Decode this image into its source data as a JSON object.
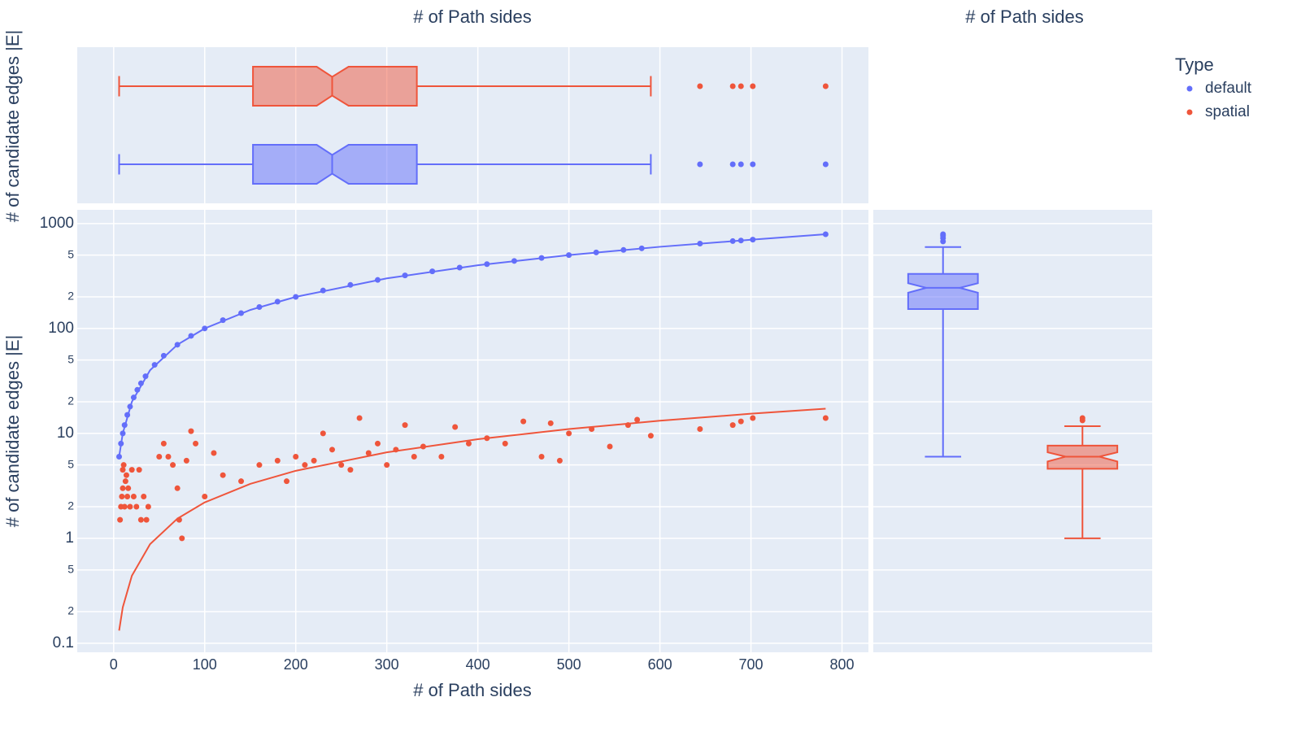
{
  "chart_data": [
    {
      "type": "scatter",
      "x_label": "# of Path sides",
      "y_label": "# of candidate edges |E|",
      "legend_title": "Type",
      "xlim": [
        -40,
        829
      ],
      "ylim": [
        0.082,
        1350
      ],
      "log_y": true,
      "grid": true,
      "xticks": [
        0,
        100,
        200,
        300,
        400,
        500,
        600,
        700,
        800
      ],
      "yticks": [
        0.1,
        {
          "value": 0.2,
          "label": "2"
        },
        {
          "value": 0.5,
          "label": "5"
        },
        1,
        2,
        5,
        10,
        {
          "value": 20,
          "label": "2"
        },
        {
          "value": 50,
          "label": "5"
        },
        100,
        {
          "value": 200,
          "label": "2"
        },
        {
          "value": 500,
          "label": "5"
        },
        1000
      ],
      "series": [
        {
          "name": "default",
          "color": "#636efa",
          "x": [
            6,
            8,
            10,
            12,
            15,
            18,
            22,
            26,
            30,
            35,
            45,
            55,
            70,
            85,
            100,
            120,
            140,
            160,
            180,
            200,
            230,
            260,
            290,
            320,
            350,
            380,
            410,
            440,
            470,
            500,
            530,
            560,
            580,
            644,
            680,
            689,
            702,
            782
          ],
          "values": [
            6,
            8,
            10,
            12,
            15,
            18,
            22,
            26,
            30,
            35,
            45,
            55,
            70,
            85,
            100,
            120,
            140,
            160,
            180,
            200,
            230,
            260,
            290,
            320,
            350,
            380,
            410,
            440,
            470,
            500,
            530,
            560,
            580,
            644,
            680,
            689,
            702,
            790
          ],
          "trend_x": [
            6,
            10,
            20,
            40,
            70,
            100,
            150,
            200,
            300,
            400,
            500,
            600,
            700,
            782
          ],
          "trend_values": [
            6,
            10,
            20,
            40,
            70,
            100,
            150,
            200,
            300,
            400,
            500,
            600,
            700,
            790
          ]
        },
        {
          "name": "spatial",
          "color": "#ef553b",
          "x": [
            7,
            8,
            9,
            10,
            10,
            11,
            12,
            13,
            14,
            15,
            16,
            18,
            20,
            22,
            25,
            28,
            30,
            33,
            36,
            38,
            50,
            55,
            60,
            65,
            70,
            72,
            75,
            80,
            85,
            90,
            100,
            110,
            120,
            140,
            160,
            180,
            190,
            200,
            210,
            220,
            230,
            240,
            250,
            260,
            270,
            280,
            290,
            300,
            310,
            320,
            330,
            340,
            360,
            375,
            390,
            410,
            430,
            450,
            470,
            480,
            490,
            500,
            525,
            545,
            565,
            575,
            590,
            644,
            680,
            689,
            702,
            782
          ],
          "values": [
            1.5,
            2,
            2.5,
            3,
            4.5,
            5,
            2,
            3.5,
            4,
            2.5,
            3,
            2,
            4.5,
            2.5,
            2,
            4.5,
            1.5,
            2.5,
            1.5,
            2,
            6,
            8,
            6,
            5,
            3,
            1.5,
            1,
            5.5,
            10.5,
            8,
            2.5,
            6.5,
            4,
            3.5,
            5,
            5.5,
            3.5,
            6,
            5,
            5.5,
            10,
            7,
            5,
            4.5,
            14,
            6.5,
            8,
            5,
            7,
            12,
            6,
            7.5,
            6,
            11.5,
            8,
            9,
            8,
            13,
            6,
            12.5,
            5.5,
            10,
            11,
            7.5,
            12,
            13.5,
            9.5,
            11,
            12,
            13,
            14,
            14
          ],
          "trend_x": [
            6,
            10,
            20,
            40,
            70,
            100,
            150,
            200,
            300,
            400,
            500,
            600,
            700,
            782
          ],
          "trend_values": [
            0.132,
            0.22,
            0.44,
            0.88,
            1.54,
            2.2,
            3.3,
            4.4,
            6.6,
            8.8,
            11,
            13.2,
            15.4,
            17.2
          ]
        }
      ]
    },
    {
      "type": "box",
      "orientation": "horizontal",
      "title": "# of Path sides",
      "y_label": "# of candidate edges |E|",
      "xlim": [
        -40,
        829
      ],
      "series": [
        {
          "name": "default",
          "color": "#636efa",
          "min": 6,
          "q1": 153,
          "median": 240,
          "q3": 333,
          "max": 590,
          "notch_low": 223,
          "notch_high": 258,
          "outliers": [
            644,
            680,
            689,
            702,
            782
          ]
        },
        {
          "name": "spatial",
          "color": "#ef553b",
          "min": 6,
          "q1": 153,
          "median": 240,
          "q3": 333,
          "max": 590,
          "notch_low": 223,
          "notch_high": 258,
          "outliers": [
            644,
            680,
            689,
            702,
            782
          ]
        }
      ]
    },
    {
      "type": "box",
      "orientation": "vertical",
      "title": "# of Path sides",
      "ylim": [
        0.082,
        1350
      ],
      "log_y": true,
      "series": [
        {
          "name": "default",
          "color": "#636efa",
          "min": 6,
          "q1": 153,
          "median": 244,
          "q3": 331,
          "max": 596,
          "notch_low": 219,
          "notch_high": 270,
          "outliers": [
            675,
            725,
            765,
            790
          ]
        },
        {
          "name": "spatial",
          "color": "#ef553b",
          "min": 1,
          "q1": 4.6,
          "median": 6,
          "q3": 7.65,
          "max": 11.7,
          "notch_low": 5.4,
          "notch_high": 6.6,
          "outliers": [
            13.3,
            14
          ]
        }
      ]
    }
  ]
}
